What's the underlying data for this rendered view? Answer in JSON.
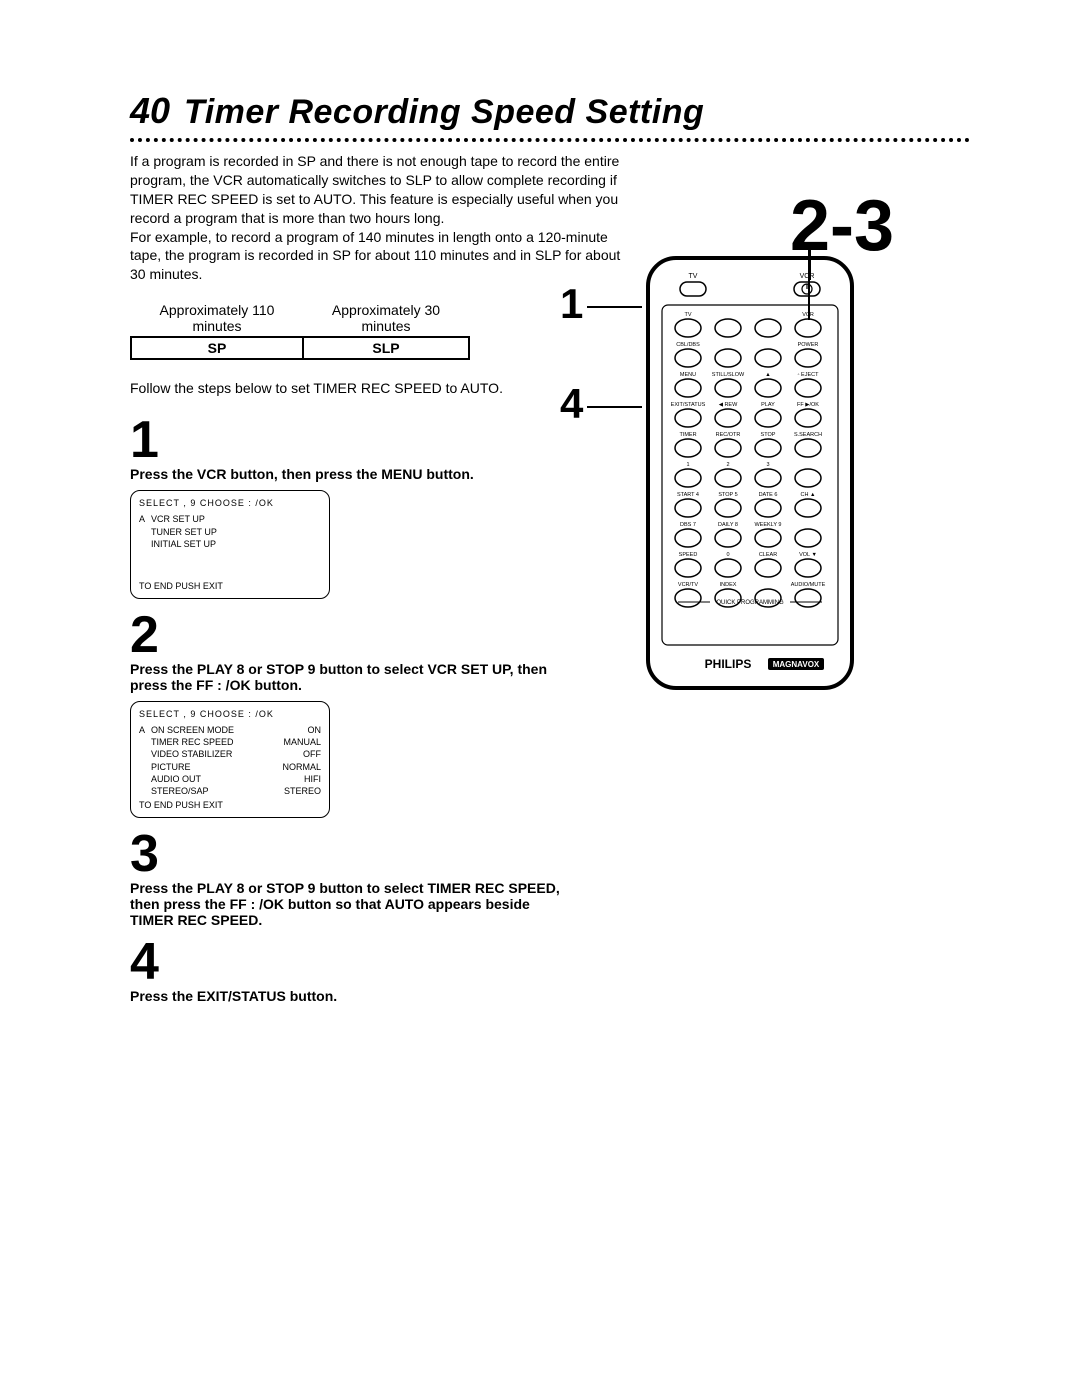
{
  "header": {
    "page_number": "40",
    "title": "Timer Recording Speed Setting"
  },
  "intro": {
    "p1": "If a program is recorded in SP and there is not enough tape to record the entire program, the VCR automatically switches to SLP to allow complete recording if TIMER REC SPEED is set to AUTO.  This feature is especially useful when you record a program that is more than two hours long.",
    "p2": "For example, to record a program of 140 minutes in length onto a 120-minute tape, the program is recorded in SP for about 110 minutes and in SLP for about 30 minutes."
  },
  "speed_table": {
    "headers": [
      "Approximately 110 minutes",
      "Approximately 30 minutes"
    ],
    "cells": [
      "SP",
      "SLP"
    ]
  },
  "follow": "Follow the steps below to set TIMER REC SPEED to AUTO.",
  "steps": {
    "s1": {
      "num": "1",
      "text": "Press the VCR button, then press the MENU button."
    },
    "s2": {
      "num": "2",
      "text": "Press the PLAY 8  or STOP 9  button to select VCR SET UP, then press the FF :  /OK button."
    },
    "s3": {
      "num": "3",
      "text": "Press the PLAY 8  or STOP 9  button to select TIMER REC SPEED, then press the FF :  /OK button so that AUTO appears beside TIMER REC SPEED."
    },
    "s4": {
      "num": "4",
      "text": "Press the EXIT/STATUS button."
    }
  },
  "osd1": {
    "header": "SELECT  ,  9        CHOOSE : /OK",
    "items": [
      "VCR SET UP",
      "TUNER SET UP",
      "INITIAL SET UP"
    ],
    "footer": "TO END PUSH EXIT"
  },
  "osd2": {
    "header": "SELECT  ,  9        CHOOSE : /OK",
    "items": [
      {
        "label": "ON SCREEN MODE",
        "value": "ON"
      },
      {
        "label": "TIMER REC SPEED",
        "value": "MANUAL"
      },
      {
        "label": "VIDEO STABILIZER",
        "value": "OFF"
      },
      {
        "label": "PICTURE",
        "value": "NORMAL"
      },
      {
        "label": "AUDIO OUT",
        "value": "HIFI"
      },
      {
        "label": "STEREO/SAP",
        "value": "STEREO"
      }
    ],
    "footer": "TO END PUSH EXIT"
  },
  "callouts": {
    "c23": "2-3",
    "c1": "1",
    "c4": "4"
  },
  "remote": {
    "brand": "PHILIPS",
    "subbrand": "MAGNAVOX",
    "body_fill": "#ffffff",
    "stroke": "#000000",
    "rows": [
      {
        "labels": [
          "TV",
          "",
          "",
          "VCR"
        ],
        "circles": 4,
        "top_labels": true
      },
      {
        "labels": [
          "CBL/DBS",
          "",
          "",
          "POWER"
        ],
        "circles": 4
      },
      {
        "labels": [
          "MENU",
          "STILL/SLOW",
          "▲",
          "◦ EJECT"
        ],
        "circles": 4
      },
      {
        "labels": [
          "EXIT/STATUS",
          "◀ REW",
          "PLAY",
          "FF ▶/OK"
        ],
        "circles": 4
      },
      {
        "labels": [
          "TIMER",
          "REC/OTR",
          "STOP",
          "S.SEARCH"
        ],
        "circles": 4
      },
      {
        "labels": [
          "1",
          "2",
          "3",
          ""
        ],
        "circles": 4
      },
      {
        "labels": [
          "START 4",
          "STOP 5",
          "DATE 6",
          "CH ▲"
        ],
        "circles": 4
      },
      {
        "labels": [
          "DBS 7",
          "DAILY 8",
          "WEEKLY 9",
          ""
        ],
        "circles": 4
      },
      {
        "labels": [
          "SPEED",
          "0",
          "CLEAR",
          "VOL ▼"
        ],
        "circles": 4
      },
      {
        "labels": [
          "VCR/TV",
          "INDEX",
          "",
          "AUDIO/MUTE"
        ],
        "circles": 4
      }
    ],
    "quick_prog": "QUICK PROGRAMMING"
  },
  "colors": {
    "text": "#000000",
    "background": "#ffffff",
    "border": "#000000"
  }
}
